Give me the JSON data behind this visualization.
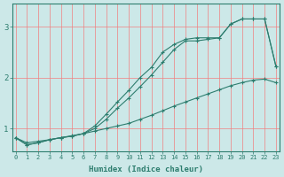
{
  "xlabel": "Humidex (Indice chaleur)",
  "bg_color": "#cce8e8",
  "line_color": "#2d7d6e",
  "grid_color": "#f08080",
  "xmin": 0,
  "xmax": 23,
  "ymin": 0.55,
  "ymax": 3.45,
  "yticks": [
    1,
    2,
    3
  ],
  "line1_x": [
    0,
    1,
    2,
    3,
    4,
    5,
    6,
    7,
    8,
    9,
    10,
    11,
    12,
    13,
    14,
    15,
    16,
    17,
    18,
    19,
    20,
    21,
    22,
    23
  ],
  "line1_y": [
    0.82,
    0.72,
    0.75,
    0.78,
    0.82,
    0.86,
    0.9,
    0.95,
    1.0,
    1.05,
    1.1,
    1.18,
    1.26,
    1.35,
    1.44,
    1.52,
    1.6,
    1.68,
    1.76,
    1.84,
    1.9,
    1.95,
    1.97,
    1.9
  ],
  "line2_x": [
    0,
    1,
    2,
    3,
    4,
    5,
    6,
    7,
    8,
    9,
    10,
    11,
    12,
    13,
    14,
    15,
    16,
    17,
    18,
    19,
    20,
    21,
    22,
    23
  ],
  "line2_y": [
    0.82,
    0.68,
    0.72,
    0.78,
    0.82,
    0.85,
    0.9,
    1.0,
    1.18,
    1.4,
    1.6,
    1.82,
    2.05,
    2.3,
    2.55,
    2.72,
    2.72,
    2.75,
    2.78,
    3.05,
    3.15,
    3.15,
    3.15,
    2.22
  ],
  "line3_x": [
    0,
    1,
    2,
    3,
    4,
    5,
    6,
    7,
    8,
    9,
    10,
    11,
    12,
    13,
    14,
    15,
    16,
    17,
    18,
    19,
    20,
    21,
    22,
    23
  ],
  "line3_y": [
    0.82,
    0.68,
    0.72,
    0.78,
    0.82,
    0.85,
    0.9,
    1.05,
    1.28,
    1.52,
    1.75,
    2.0,
    2.2,
    2.5,
    2.65,
    2.75,
    2.78,
    2.78,
    2.78,
    3.05,
    3.15,
    3.15,
    3.15,
    2.22
  ]
}
